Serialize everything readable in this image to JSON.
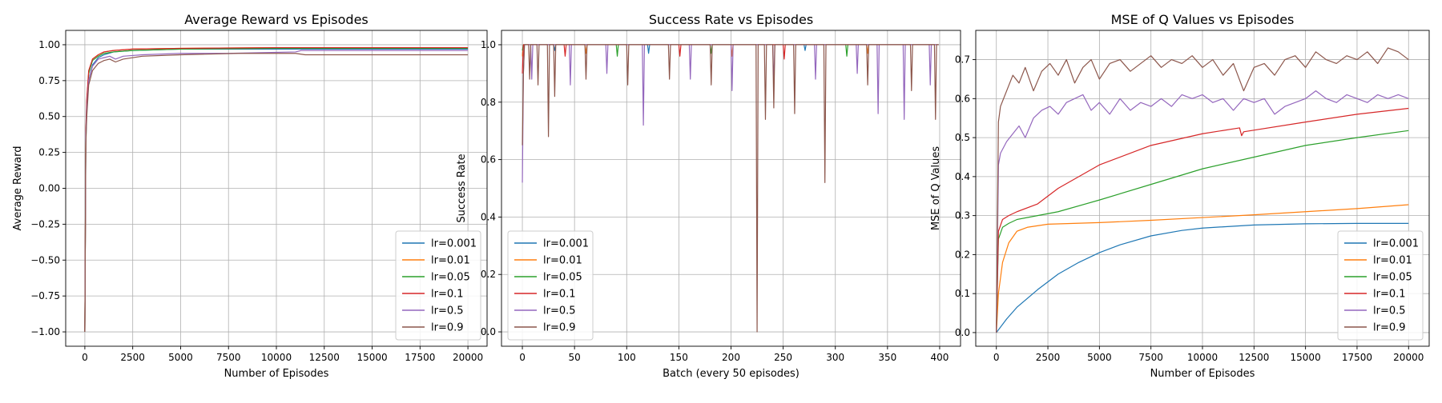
{
  "chart_data": [
    {
      "type": "line",
      "title": "Average Reward vs Episodes",
      "xlabel": "Number of Episodes",
      "ylabel": "Average Reward",
      "xlim": [
        -1000,
        21000
      ],
      "ylim": [
        -1.1,
        1.1
      ],
      "xticks": [
        0,
        2500,
        5000,
        7500,
        10000,
        12500,
        15000,
        17500,
        20000
      ],
      "xtick_labels": [
        "0",
        "2500",
        "5000",
        "7500",
        "10000",
        "12500",
        "15000",
        "17500",
        "20000"
      ],
      "yticks": [
        -1.0,
        -0.75,
        -0.5,
        -0.25,
        0.0,
        0.25,
        0.5,
        0.75,
        1.0
      ],
      "ytick_labels": [
        "−1.00",
        "−0.75",
        "−0.50",
        "−0.25",
        "0.00",
        "0.25",
        "0.50",
        "0.75",
        "1.00"
      ],
      "grid": true,
      "legend_position": "lower-right",
      "series": [
        {
          "name": "lr=0.001",
          "color": "#1f77b4",
          "x": [
            0,
            50,
            100,
            200,
            400,
            700,
            1000,
            1500,
            2500,
            5000,
            10000,
            15000,
            20000
          ],
          "y": [
            -1.0,
            0.3,
            0.55,
            0.75,
            0.86,
            0.91,
            0.93,
            0.95,
            0.96,
            0.97,
            0.97,
            0.97,
            0.97
          ]
        },
        {
          "name": "lr=0.01",
          "color": "#ff7f0e",
          "x": [
            0,
            50,
            100,
            200,
            400,
            700,
            1000,
            1500,
            2500,
            5000,
            10000,
            15000,
            20000
          ],
          "y": [
            -1.0,
            0.35,
            0.6,
            0.8,
            0.9,
            0.93,
            0.95,
            0.96,
            0.97,
            0.975,
            0.98,
            0.98,
            0.98
          ]
        },
        {
          "name": "lr=0.05",
          "color": "#2ca02c",
          "x": [
            0,
            50,
            100,
            200,
            400,
            700,
            1000,
            1500,
            2500,
            5000,
            10000,
            15000,
            20000
          ],
          "y": [
            -1.0,
            0.35,
            0.6,
            0.8,
            0.89,
            0.92,
            0.94,
            0.95,
            0.96,
            0.97,
            0.975,
            0.975,
            0.975
          ]
        },
        {
          "name": "lr=0.1",
          "color": "#d62728",
          "x": [
            0,
            50,
            100,
            200,
            400,
            700,
            1000,
            1500,
            2500,
            5000,
            10000,
            15000,
            20000
          ],
          "y": [
            -1.0,
            0.4,
            0.62,
            0.82,
            0.9,
            0.93,
            0.95,
            0.96,
            0.97,
            0.975,
            0.98,
            0.98,
            0.98
          ]
        },
        {
          "name": "lr=0.5",
          "color": "#9467bd",
          "x": [
            0,
            50,
            100,
            200,
            400,
            700,
            1000,
            1300,
            1600,
            2000,
            3000,
            5000,
            7500,
            11000,
            11300,
            15000,
            20000
          ],
          "y": [
            -1.0,
            0.35,
            0.55,
            0.75,
            0.85,
            0.9,
            0.91,
            0.92,
            0.9,
            0.92,
            0.93,
            0.94,
            0.94,
            0.95,
            0.96,
            0.96,
            0.96
          ]
        },
        {
          "name": "lr=0.9",
          "color": "#8c564b",
          "x": [
            0,
            50,
            100,
            200,
            400,
            700,
            1000,
            1300,
            1600,
            2000,
            3000,
            5000,
            8000,
            11000,
            11500,
            14000,
            20000
          ],
          "y": [
            -1.0,
            0.3,
            0.5,
            0.72,
            0.82,
            0.87,
            0.89,
            0.9,
            0.88,
            0.9,
            0.92,
            0.93,
            0.94,
            0.94,
            0.93,
            0.93,
            0.93
          ]
        }
      ]
    },
    {
      "type": "line",
      "title": "Success Rate vs Episodes",
      "xlabel": "Batch (every 50 episodes)",
      "ylabel": "Success Rate",
      "xlim": [
        -20,
        420
      ],
      "ylim": [
        -0.05,
        1.05
      ],
      "xticks": [
        0,
        50,
        100,
        150,
        200,
        250,
        300,
        350,
        400
      ],
      "xtick_labels": [
        "0",
        "50",
        "100",
        "150",
        "200",
        "250",
        "300",
        "350",
        "400"
      ],
      "yticks": [
        0.0,
        0.2,
        0.4,
        0.6,
        0.8,
        1.0
      ],
      "ytick_labels": [
        "0.0",
        "0.2",
        "0.4",
        "0.6",
        "0.8",
        "1.0"
      ],
      "grid": true,
      "legend_position": "lower-left",
      "series": [
        {
          "name": "lr=0.001",
          "color": "#1f77b4",
          "x": [
            0,
            1,
            30,
            31,
            32,
            120,
            121,
            122,
            270,
            271,
            272,
            399
          ],
          "y": [
            0.96,
            1.0,
            1.0,
            0.98,
            1.0,
            1.0,
            0.97,
            1.0,
            1.0,
            0.98,
            1.0,
            1.0
          ]
        },
        {
          "name": "lr=0.01",
          "color": "#ff7f0e",
          "x": [
            0,
            1,
            60,
            61,
            62,
            200,
            201,
            202,
            330,
            331,
            332,
            399
          ],
          "y": [
            0.96,
            1.0,
            1.0,
            0.97,
            1.0,
            1.0,
            0.96,
            1.0,
            1.0,
            0.97,
            1.0,
            1.0
          ]
        },
        {
          "name": "lr=0.05",
          "color": "#2ca02c",
          "x": [
            0,
            1,
            90,
            91,
            92,
            180,
            181,
            182,
            310,
            311,
            312,
            399
          ],
          "y": [
            0.98,
            1.0,
            1.0,
            0.96,
            1.0,
            1.0,
            0.97,
            1.0,
            1.0,
            0.96,
            1.0,
            1.0
          ]
        },
        {
          "name": "lr=0.1",
          "color": "#d62728",
          "x": [
            0,
            1,
            40,
            41,
            42,
            150,
            151,
            152,
            250,
            251,
            252,
            399
          ],
          "y": [
            0.9,
            1.0,
            1.0,
            0.96,
            1.0,
            1.0,
            0.96,
            1.0,
            1.0,
            0.95,
            1.0,
            1.0
          ]
        },
        {
          "name": "lr=0.5",
          "color": "#9467bd",
          "x": [
            0,
            1,
            2,
            8,
            9,
            10,
            45,
            46,
            47,
            80,
            81,
            82,
            115,
            116,
            117,
            160,
            161,
            162,
            200,
            201,
            202,
            240,
            241,
            242,
            280,
            281,
            282,
            320,
            321,
            322,
            340,
            341,
            342,
            365,
            366,
            367,
            390,
            391,
            392,
            399
          ],
          "y": [
            0.52,
            0.9,
            1.0,
            1.0,
            0.88,
            1.0,
            1.0,
            0.86,
            1.0,
            1.0,
            0.9,
            1.0,
            1.0,
            0.72,
            1.0,
            1.0,
            0.88,
            1.0,
            1.0,
            0.84,
            1.0,
            1.0,
            0.86,
            1.0,
            1.0,
            0.88,
            1.0,
            1.0,
            0.9,
            1.0,
            1.0,
            0.76,
            1.0,
            1.0,
            0.74,
            1.0,
            1.0,
            0.86,
            1.0,
            1.0
          ]
        },
        {
          "name": "lr=0.9",
          "color": "#8c564b",
          "x": [
            0,
            1,
            2,
            6,
            7,
            8,
            14,
            15,
            16,
            24,
            25,
            26,
            30,
            31,
            32,
            60,
            61,
            62,
            100,
            101,
            102,
            140,
            141,
            142,
            180,
            181,
            182,
            224,
            225,
            226,
            232,
            233,
            234,
            240,
            241,
            242,
            260,
            261,
            262,
            289,
            290,
            291,
            330,
            331,
            332,
            372,
            373,
            374,
            395,
            396,
            397,
            399
          ],
          "y": [
            0.65,
            0.9,
            1.0,
            1.0,
            0.88,
            1.0,
            1.0,
            0.86,
            1.0,
            1.0,
            0.68,
            1.0,
            1.0,
            0.82,
            1.0,
            1.0,
            0.88,
            1.0,
            1.0,
            0.86,
            1.0,
            1.0,
            0.88,
            1.0,
            1.0,
            0.86,
            1.0,
            1.0,
            0.0,
            1.0,
            1.0,
            0.74,
            1.0,
            1.0,
            0.78,
            1.0,
            1.0,
            0.76,
            1.0,
            1.0,
            0.52,
            1.0,
            1.0,
            0.86,
            1.0,
            1.0,
            0.84,
            1.0,
            1.0,
            0.74,
            1.0,
            1.0
          ]
        }
      ]
    },
    {
      "type": "line",
      "title": "MSE of Q Values vs Episodes",
      "xlabel": "Number of Episodes",
      "ylabel": "MSE of Q Values",
      "xlim": [
        -1000,
        21000
      ],
      "ylim": [
        -0.035,
        0.775
      ],
      "xticks": [
        0,
        2500,
        5000,
        7500,
        10000,
        12500,
        15000,
        17500,
        20000
      ],
      "xtick_labels": [
        "0",
        "2500",
        "5000",
        "7500",
        "10000",
        "12500",
        "15000",
        "17500",
        "20000"
      ],
      "yticks": [
        0.0,
        0.1,
        0.2,
        0.3,
        0.4,
        0.5,
        0.6,
        0.7
      ],
      "ytick_labels": [
        "0.0",
        "0.1",
        "0.2",
        "0.3",
        "0.4",
        "0.5",
        "0.6",
        "0.7"
      ],
      "grid": true,
      "legend_position": "lower-right",
      "series": [
        {
          "name": "lr=0.001",
          "color": "#1f77b4",
          "x": [
            0,
            500,
            1000,
            2000,
            3000,
            4000,
            5000,
            6000,
            7500,
            9000,
            10000,
            12500,
            15000,
            17500,
            20000
          ],
          "y": [
            0.0,
            0.035,
            0.065,
            0.11,
            0.15,
            0.18,
            0.205,
            0.225,
            0.248,
            0.262,
            0.268,
            0.276,
            0.279,
            0.28,
            0.28
          ]
        },
        {
          "name": "lr=0.01",
          "color": "#ff7f0e",
          "x": [
            0,
            100,
            300,
            600,
            1000,
            1500,
            2500,
            5000,
            7500,
            10000,
            12500,
            15000,
            17500,
            20000
          ],
          "y": [
            0.0,
            0.1,
            0.18,
            0.23,
            0.26,
            0.27,
            0.278,
            0.282,
            0.288,
            0.295,
            0.302,
            0.31,
            0.318,
            0.328
          ]
        },
        {
          "name": "lr=0.05",
          "color": "#2ca02c",
          "x": [
            0,
            100,
            300,
            600,
            1000,
            2000,
            3000,
            5000,
            7500,
            10000,
            12500,
            15000,
            17500,
            20000
          ],
          "y": [
            0.0,
            0.24,
            0.27,
            0.28,
            0.29,
            0.3,
            0.31,
            0.34,
            0.38,
            0.42,
            0.45,
            0.48,
            0.5,
            0.518
          ]
        },
        {
          "name": "lr=0.1",
          "color": "#d62728",
          "x": [
            0,
            100,
            300,
            600,
            1000,
            2000,
            3000,
            5000,
            7500,
            10000,
            11800,
            11900,
            12000,
            15000,
            17500,
            20000
          ],
          "y": [
            0.0,
            0.26,
            0.29,
            0.3,
            0.31,
            0.33,
            0.37,
            0.43,
            0.48,
            0.51,
            0.525,
            0.505,
            0.515,
            0.54,
            0.56,
            0.575
          ]
        },
        {
          "name": "lr=0.5",
          "color": "#9467bd",
          "x": [
            0,
            100,
            200,
            500,
            800,
            1100,
            1400,
            1800,
            2200,
            2600,
            3000,
            3400,
            3800,
            4200,
            4600,
            5000,
            5500,
            6000,
            6500,
            7000,
            7500,
            8000,
            8500,
            9000,
            9500,
            10000,
            10500,
            11000,
            11500,
            12000,
            12500,
            13000,
            13500,
            14000,
            14500,
            15000,
            15500,
            16000,
            16500,
            17000,
            17500,
            18000,
            18500,
            19000,
            19500,
            20000
          ],
          "y": [
            0.0,
            0.43,
            0.46,
            0.49,
            0.51,
            0.53,
            0.5,
            0.55,
            0.57,
            0.58,
            0.56,
            0.59,
            0.6,
            0.61,
            0.57,
            0.59,
            0.56,
            0.6,
            0.57,
            0.59,
            0.58,
            0.6,
            0.58,
            0.61,
            0.6,
            0.61,
            0.59,
            0.6,
            0.57,
            0.6,
            0.59,
            0.6,
            0.56,
            0.58,
            0.59,
            0.6,
            0.62,
            0.6,
            0.59,
            0.61,
            0.6,
            0.59,
            0.61,
            0.6,
            0.61,
            0.6
          ]
        },
        {
          "name": "lr=0.9",
          "color": "#8c564b",
          "x": [
            0,
            100,
            200,
            500,
            800,
            1100,
            1400,
            1800,
            2200,
            2600,
            3000,
            3400,
            3800,
            4200,
            4600,
            5000,
            5500,
            6000,
            6500,
            7000,
            7500,
            8000,
            8500,
            9000,
            9500,
            10000,
            10500,
            11000,
            11500,
            12000,
            12500,
            13000,
            13500,
            14000,
            14500,
            15000,
            15500,
            16000,
            16500,
            17000,
            17500,
            18000,
            18500,
            19000,
            19500,
            20000
          ],
          "y": [
            0.0,
            0.54,
            0.58,
            0.62,
            0.66,
            0.64,
            0.68,
            0.62,
            0.67,
            0.69,
            0.66,
            0.7,
            0.64,
            0.68,
            0.7,
            0.65,
            0.69,
            0.7,
            0.67,
            0.69,
            0.71,
            0.68,
            0.7,
            0.69,
            0.71,
            0.68,
            0.7,
            0.66,
            0.69,
            0.62,
            0.68,
            0.69,
            0.66,
            0.7,
            0.71,
            0.68,
            0.72,
            0.7,
            0.69,
            0.71,
            0.7,
            0.72,
            0.69,
            0.73,
            0.72,
            0.7
          ]
        }
      ]
    }
  ]
}
